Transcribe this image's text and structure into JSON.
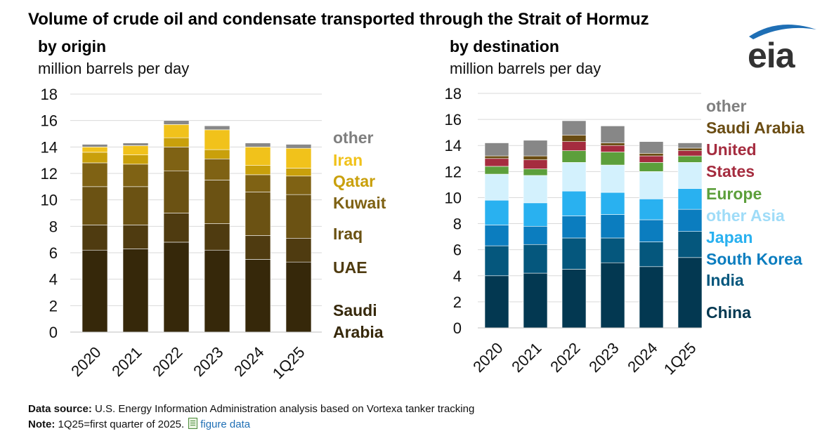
{
  "title": "Volume of crude oil and condensate transported through the Strait of Hormuz",
  "logo": {
    "text": "eia",
    "color": "#1f6fb5"
  },
  "footer": {
    "source_label": "Data source:",
    "source_text": " U.S. Energy Information Administration analysis based on Vortexa tanker tracking",
    "note_label": "Note:",
    "note_text": " 1Q25=first quarter of 2025.",
    "link_text": "figure data"
  },
  "chart_data": [
    {
      "type": "bar",
      "stacked": true,
      "subtitle": "by origin",
      "ylabel": "million barrels per day",
      "ylim": [
        0,
        18
      ],
      "yticks": [
        0,
        2,
        4,
        6,
        8,
        10,
        12,
        14,
        16,
        18
      ],
      "categories": [
        "2020",
        "2021",
        "2022",
        "2023",
        "2024",
        "1Q25"
      ],
      "series": [
        {
          "name": "Saudi Arabia",
          "color": "#36280a",
          "values": [
            6.2,
            6.3,
            6.8,
            6.2,
            5.5,
            5.3
          ]
        },
        {
          "name": "UAE",
          "color": "#4f3b10",
          "values": [
            1.9,
            1.8,
            2.2,
            2.0,
            1.8,
            1.8
          ]
        },
        {
          "name": "Iraq",
          "color": "#6b5213",
          "values": [
            2.9,
            2.9,
            3.2,
            3.3,
            3.3,
            3.3
          ]
        },
        {
          "name": "Kuwait",
          "color": "#7f6214",
          "values": [
            1.8,
            1.7,
            1.8,
            1.6,
            1.3,
            1.4
          ]
        },
        {
          "name": "Qatar",
          "color": "#c9a00b",
          "values": [
            0.8,
            0.7,
            0.7,
            0.7,
            0.7,
            0.6
          ]
        },
        {
          "name": "Iran",
          "color": "#f1c21b",
          "values": [
            0.4,
            0.7,
            1.0,
            1.5,
            1.4,
            1.5
          ]
        },
        {
          "name": "other",
          "color": "#888888",
          "values": [
            0.2,
            0.2,
            0.3,
            0.3,
            0.3,
            0.3
          ]
        }
      ],
      "legend_labels": [
        {
          "text": "other",
          "color": "#7f7f7f"
        },
        {
          "text": "Iran",
          "color": "#f1c21b"
        },
        {
          "text": "Qatar",
          "color": "#c9a00b"
        },
        {
          "text": "Kuwait",
          "color": "#7f6214"
        },
        {
          "text": "Iraq",
          "color": "#6b5213"
        },
        {
          "text": "UAE",
          "color": "#4f3b10"
        },
        {
          "text": "Saudi",
          "color": "#36280a"
        },
        {
          "text": "Arabia",
          "color": "#36280a"
        }
      ]
    },
    {
      "type": "bar",
      "stacked": true,
      "subtitle": "by destination",
      "ylabel": "million barrels per day",
      "ylim": [
        0,
        18
      ],
      "yticks": [
        0,
        2,
        4,
        6,
        8,
        10,
        12,
        14,
        16,
        18
      ],
      "categories": [
        "2020",
        "2021",
        "2022",
        "2023",
        "2024",
        "1Q25"
      ],
      "series": [
        {
          "name": "China",
          "color": "#033851",
          "values": [
            4.0,
            4.2,
            4.5,
            5.0,
            4.7,
            5.4
          ]
        },
        {
          "name": "India",
          "color": "#05577d",
          "values": [
            2.3,
            2.2,
            2.4,
            1.9,
            1.9,
            2.0
          ]
        },
        {
          "name": "South Korea",
          "color": "#0b7dbf",
          "values": [
            1.6,
            1.4,
            1.7,
            1.8,
            1.7,
            1.7
          ]
        },
        {
          "name": "Japan",
          "color": "#29b1f0",
          "values": [
            1.9,
            1.8,
            1.9,
            1.7,
            1.6,
            1.6
          ]
        },
        {
          "name": "other Asia",
          "color": "#d3f1fd",
          "values": [
            2.0,
            2.1,
            2.2,
            2.1,
            2.1,
            2.0
          ]
        },
        {
          "name": "Europe",
          "color": "#5c9f3b",
          "values": [
            0.6,
            0.5,
            0.9,
            1.0,
            0.7,
            0.5
          ]
        },
        {
          "name": "United States",
          "color": "#a52c3f",
          "values": [
            0.6,
            0.7,
            0.7,
            0.5,
            0.5,
            0.4
          ]
        },
        {
          "name": "Saudi Arabia",
          "color": "#6a4c12",
          "values": [
            0.2,
            0.3,
            0.5,
            0.2,
            0.2,
            0.2
          ]
        },
        {
          "name": "other",
          "color": "#878787",
          "values": [
            1.0,
            1.2,
            1.1,
            1.3,
            0.9,
            0.4
          ]
        }
      ],
      "legend_labels": [
        {
          "text": "other",
          "color": "#7f7f7f"
        },
        {
          "text": "Saudi Arabia",
          "color": "#6a4c12"
        },
        {
          "text": "United",
          "color": "#a52c3f"
        },
        {
          "text": "States",
          "color": "#a52c3f"
        },
        {
          "text": "Europe",
          "color": "#5c9f3b"
        },
        {
          "text": "other Asia",
          "color": "#9fdcf8"
        },
        {
          "text": "Japan",
          "color": "#29b1f0"
        },
        {
          "text": "South Korea",
          "color": "#0b7dbf"
        },
        {
          "text": "India",
          "color": "#05577d"
        },
        {
          "text": "China",
          "color": "#033851"
        }
      ]
    }
  ]
}
